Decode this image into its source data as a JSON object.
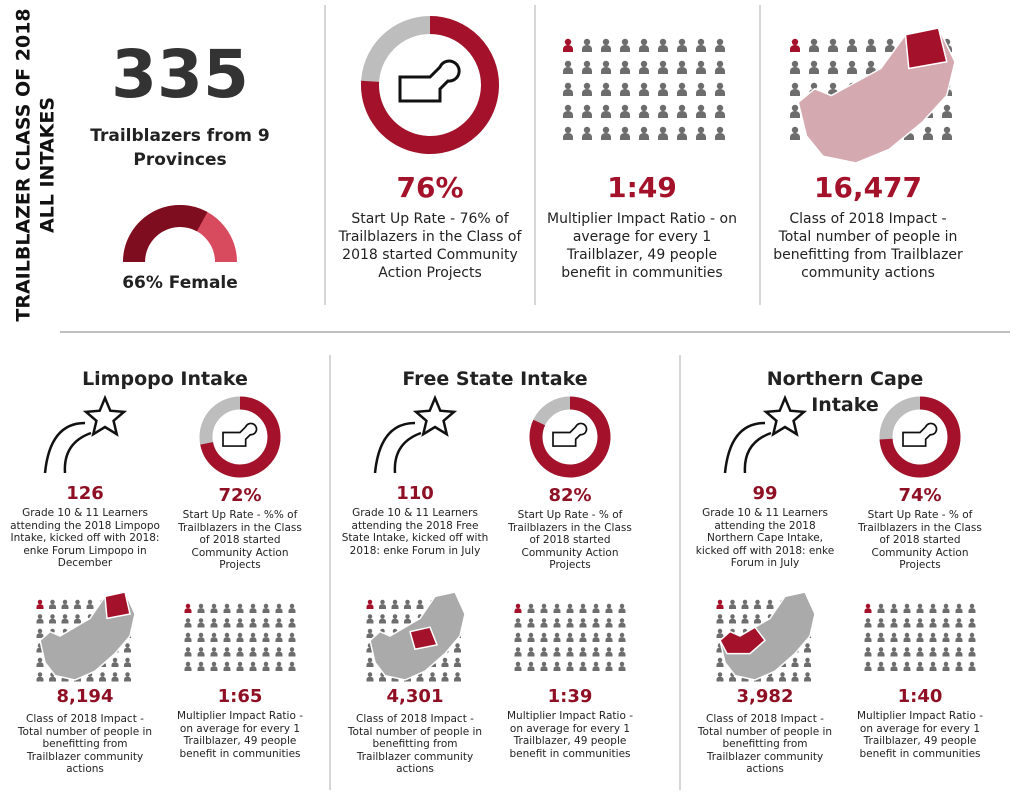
{
  "header": {
    "title_line1": "TRAILBLAZER CLASS OF 2018",
    "title_line2": "ALL INTAKES"
  },
  "overview": {
    "total": "335",
    "total_caption": "Trailblazers from 9 Provinces",
    "female": {
      "value": 66,
      "label": "66% Female"
    },
    "startup": {
      "value": 76,
      "label": "76%",
      "caption": "Start Up Rate - 76% of Trailblazers in the Class of 2018 started Community Action Projects"
    },
    "ratio": {
      "label": "1:49",
      "caption": "Multiplier Impact Ratio - on average for every 1 Trailblazer, 49 people benefit in communities"
    },
    "impact": {
      "label": "16,477",
      "caption": "Class of 2018 Impact - Total number of people in benefitting from Trailblazer community actions"
    }
  },
  "intakes": [
    {
      "title": "Limpopo Intake",
      "learners": "126",
      "learners_caption": "Grade 10 & 11 Learners attending the 2018 Limpopo Intake, kicked off with 2018: enke Forum Limpopo in December",
      "startup": {
        "value": 72,
        "label": "72%",
        "caption": "Start Up Rate - %% of Trailblazers in the Class of 2018 started Community Action Projects"
      },
      "impact": "8,194",
      "impact_caption": "Class of 2018 Impact - Total number of people in benefitting from Trailblazer community actions",
      "ratio": "1:65",
      "ratio_caption": "Multiplier Impact Ratio - on average for every 1 Trailblazer, 49 people benefit in communities"
    },
    {
      "title": "Free State Intake",
      "learners": "110",
      "learners_caption": "Grade 10 & 11 Learners attending the 2018 Free State Intake, kicked off with 2018: enke Forum in July",
      "startup": {
        "value": 82,
        "label": "82%",
        "caption": "Start Up Rate - % of Trailblazers in the Class of 2018 started Community Action Projects"
      },
      "impact": "4,301",
      "impact_caption": "Class of 2018 Impact - Total number of people in benefitting from Trailblazer community actions",
      "ratio": "1:39",
      "ratio_caption": "Multiplier Impact Ratio - on average for every 1 Trailblazer, 49 people benefit in communities"
    },
    {
      "title": "Northern Cape Intake",
      "learners": "99",
      "learners_caption": "Grade 10 & 11 Learners attending the 2018 Northern Cape Intake, kicked off with 2018: enke Forum in July",
      "startup": {
        "value": 74,
        "label": "74%",
        "caption": "Start Up Rate - % of Trailblazers in the Class of 2018 started Community Action Projects"
      },
      "impact": "3,982",
      "impact_caption": "Class of 2018 Impact - Total number of people in benefitting from Trailblazer community actions",
      "ratio": "1:40",
      "ratio_caption": "Multiplier Impact Ratio - on average for every 1 Trailblazer, 49 people benefit in communities"
    }
  ]
}
